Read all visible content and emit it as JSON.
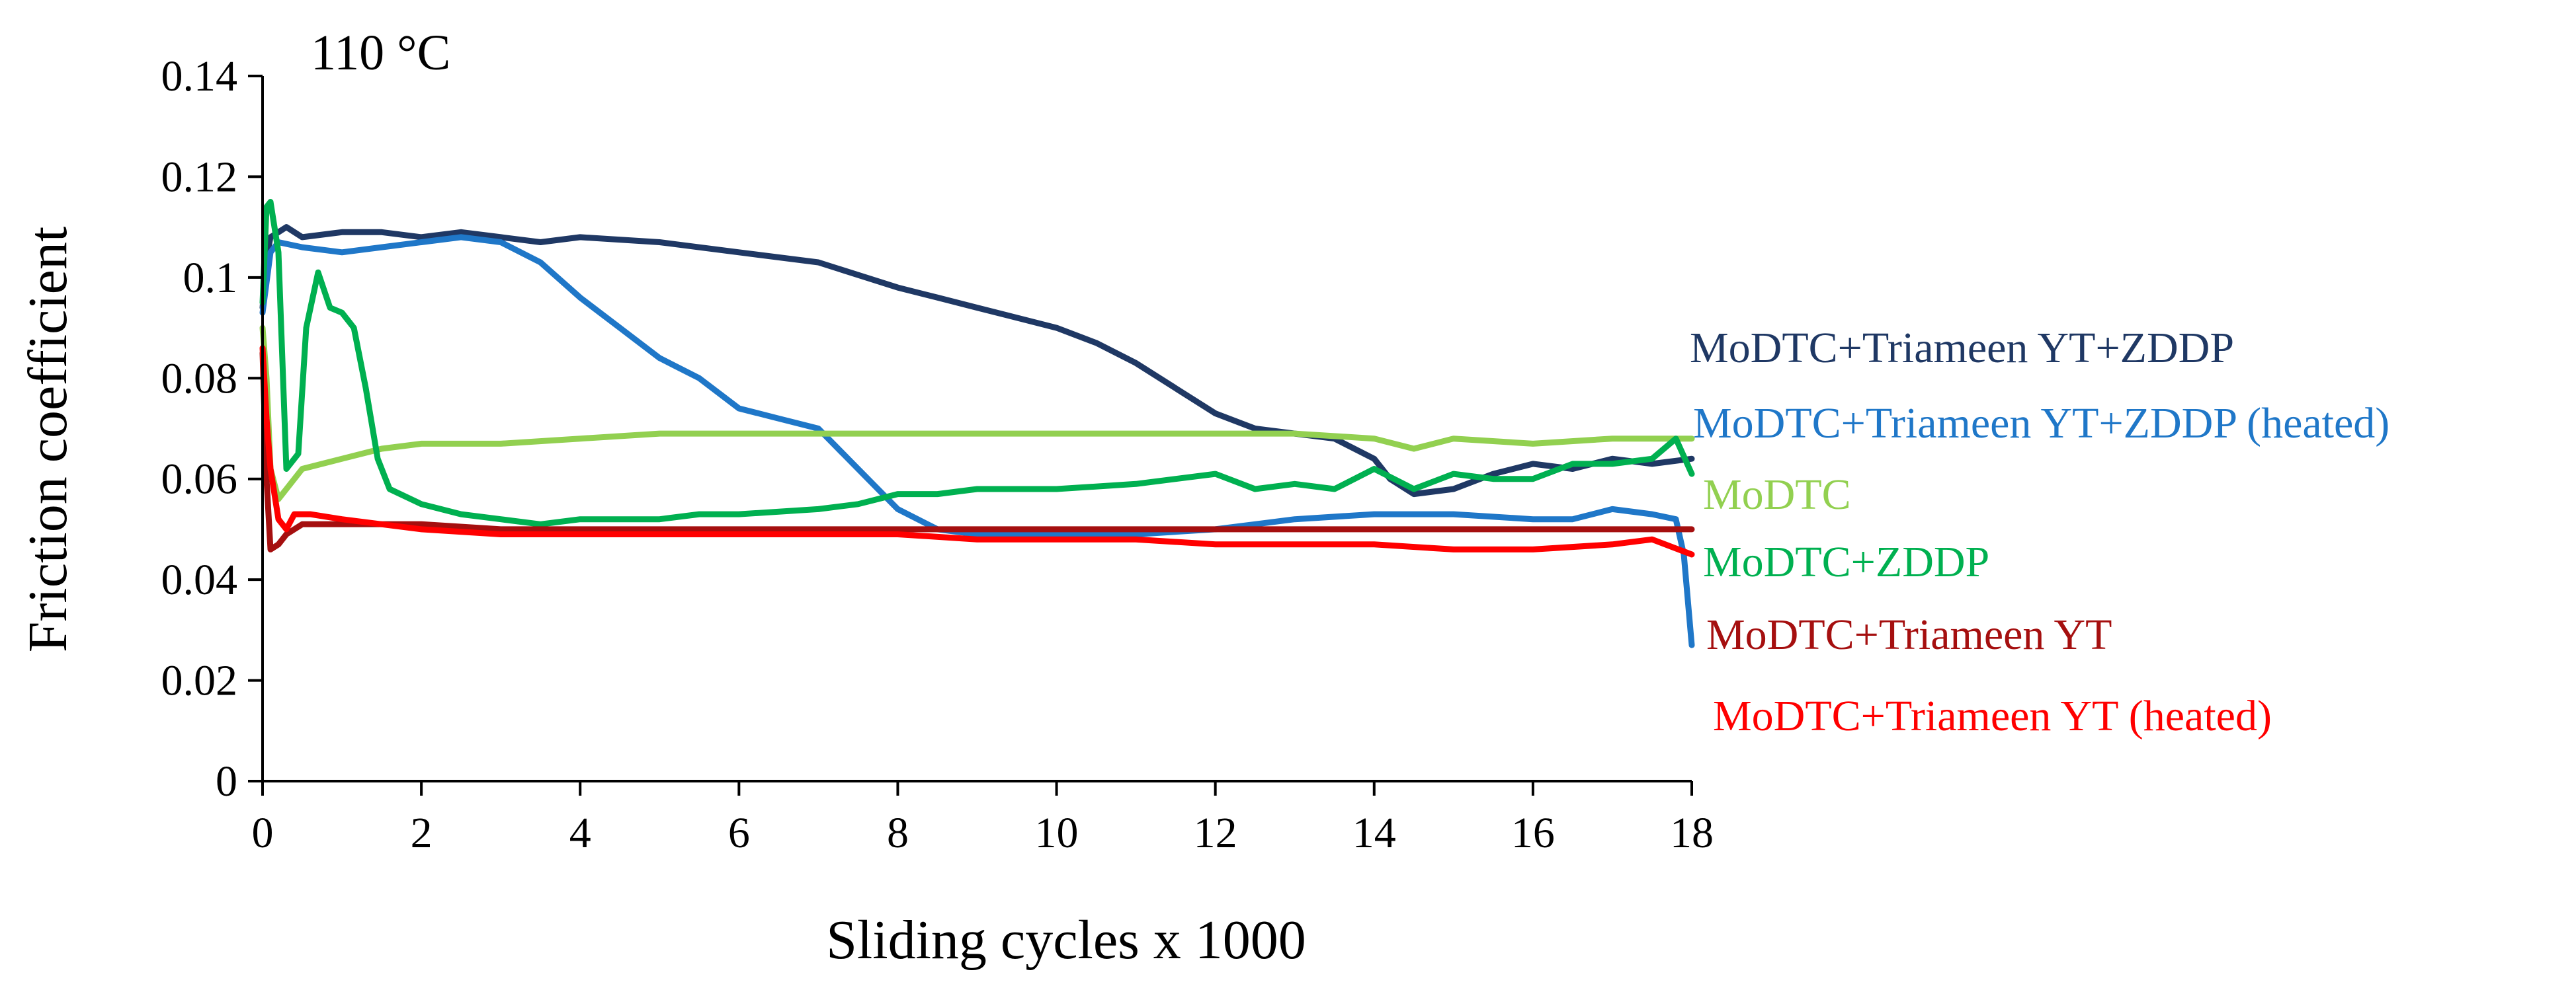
{
  "chart_data": {
    "type": "line",
    "title": "",
    "annotation": "110 °C",
    "xlabel": "Sliding cycles x 1000",
    "ylabel": "Friction coefficient",
    "xlim": [
      0,
      18
    ],
    "ylim": [
      0,
      0.14
    ],
    "x_ticks": [
      "0",
      "2",
      "4",
      "6",
      "8",
      "10",
      "12",
      "14",
      "16",
      "18"
    ],
    "y_ticks": [
      "0",
      "0.02",
      "0.04",
      "0.06",
      "0.08",
      "0.1",
      "0.12",
      "0.14"
    ],
    "grid": false,
    "legend_position": "right",
    "series": [
      {
        "name": "MoDTC+Triameen YT+ZDDP",
        "color": "#1f3864",
        "x": [
          0,
          0.05,
          0.1,
          0.2,
          0.3,
          0.5,
          1,
          1.5,
          2,
          2.5,
          3,
          3.5,
          4,
          5,
          6,
          7,
          8,
          8.5,
          9,
          10,
          10.5,
          11,
          11.5,
          12,
          12.5,
          13,
          13.5,
          14,
          14.2,
          14.5,
          15,
          15.5,
          16,
          16.5,
          17,
          17.5,
          18
        ],
        "y": [
          0.094,
          0.104,
          0.108,
          0.109,
          0.11,
          0.108,
          0.109,
          0.109,
          0.108,
          0.109,
          0.108,
          0.107,
          0.108,
          0.107,
          0.105,
          0.103,
          0.098,
          0.096,
          0.094,
          0.09,
          0.087,
          0.083,
          0.078,
          0.073,
          0.07,
          0.069,
          0.068,
          0.064,
          0.06,
          0.057,
          0.058,
          0.061,
          0.063,
          0.062,
          0.064,
          0.063,
          0.064
        ]
      },
      {
        "name": "MoDTC+Triameen YT+ZDDP (heated)",
        "color": "#1f77c8",
        "x": [
          0,
          0.1,
          0.2,
          0.5,
          1,
          1.5,
          2,
          2.5,
          3,
          3.5,
          4,
          4.5,
          5,
          5.5,
          6,
          6.5,
          7,
          7.5,
          8,
          8.5,
          9,
          10,
          11,
          12,
          13,
          14,
          15,
          16,
          16.5,
          17,
          17.5,
          17.8,
          17.9,
          18
        ],
        "y": [
          0.093,
          0.105,
          0.107,
          0.106,
          0.105,
          0.106,
          0.107,
          0.108,
          0.107,
          0.103,
          0.096,
          0.09,
          0.084,
          0.08,
          0.074,
          0.072,
          0.07,
          0.062,
          0.054,
          0.05,
          0.049,
          0.049,
          0.049,
          0.05,
          0.052,
          0.053,
          0.053,
          0.052,
          0.052,
          0.054,
          0.053,
          0.052,
          0.045,
          0.027
        ]
      },
      {
        "name": "MoDTC",
        "color": "#92d050",
        "x": [
          0,
          0.05,
          0.1,
          0.2,
          0.3,
          0.5,
          1,
          1.5,
          2,
          3,
          4,
          5,
          6,
          7,
          8,
          9,
          10,
          11,
          12,
          13,
          14,
          14.5,
          15,
          16,
          17,
          18
        ],
        "y": [
          0.09,
          0.08,
          0.062,
          0.056,
          0.058,
          0.062,
          0.064,
          0.066,
          0.067,
          0.067,
          0.068,
          0.069,
          0.069,
          0.069,
          0.069,
          0.069,
          0.069,
          0.069,
          0.069,
          0.069,
          0.068,
          0.066,
          0.068,
          0.067,
          0.068,
          0.068
        ]
      },
      {
        "name": "MoDTC+ZDDP",
        "color": "#00b050",
        "x": [
          0,
          0.05,
          0.1,
          0.2,
          0.3,
          0.45,
          0.55,
          0.7,
          0.85,
          1,
          1.15,
          1.3,
          1.45,
          1.6,
          2,
          2.5,
          3,
          3.5,
          4,
          4.5,
          5,
          5.5,
          6,
          7,
          7.5,
          8,
          8.5,
          9,
          10,
          11,
          11.5,
          12,
          12.5,
          13,
          13.5,
          14,
          14.5,
          15,
          15.5,
          16,
          16.5,
          17,
          17.5,
          17.8,
          18
        ],
        "y": [
          0.095,
          0.114,
          0.115,
          0.105,
          0.062,
          0.065,
          0.09,
          0.101,
          0.094,
          0.093,
          0.09,
          0.078,
          0.064,
          0.058,
          0.055,
          0.053,
          0.052,
          0.051,
          0.052,
          0.052,
          0.052,
          0.053,
          0.053,
          0.054,
          0.055,
          0.057,
          0.057,
          0.058,
          0.058,
          0.059,
          0.06,
          0.061,
          0.058,
          0.059,
          0.058,
          0.062,
          0.058,
          0.061,
          0.06,
          0.06,
          0.063,
          0.063,
          0.064,
          0.068,
          0.061
        ]
      },
      {
        "name": "MoDTC+Triameen YT",
        "color": "#a50f0f",
        "x": [
          0,
          0.05,
          0.1,
          0.2,
          0.3,
          0.5,
          1,
          2,
          3,
          4,
          5,
          6,
          7,
          8,
          9,
          10,
          11,
          12,
          13,
          14,
          15,
          16,
          17,
          18
        ],
        "y": [
          0.085,
          0.06,
          0.046,
          0.047,
          0.049,
          0.051,
          0.051,
          0.051,
          0.05,
          0.05,
          0.05,
          0.05,
          0.05,
          0.05,
          0.05,
          0.05,
          0.05,
          0.05,
          0.05,
          0.05,
          0.05,
          0.05,
          0.05,
          0.05
        ]
      },
      {
        "name": "MoDTC+Triameen YT (heated)",
        "color": "#ff0000",
        "x": [
          0,
          0.05,
          0.1,
          0.2,
          0.3,
          0.4,
          0.6,
          1,
          1.5,
          2,
          3,
          4,
          5,
          6,
          7,
          8,
          9,
          10,
          11,
          12,
          13,
          14,
          15,
          16,
          17,
          17.5,
          18
        ],
        "y": [
          0.086,
          0.072,
          0.062,
          0.052,
          0.05,
          0.053,
          0.053,
          0.052,
          0.051,
          0.05,
          0.049,
          0.049,
          0.049,
          0.049,
          0.049,
          0.049,
          0.048,
          0.048,
          0.048,
          0.047,
          0.047,
          0.047,
          0.046,
          0.046,
          0.047,
          0.048,
          0.045
        ]
      }
    ]
  }
}
